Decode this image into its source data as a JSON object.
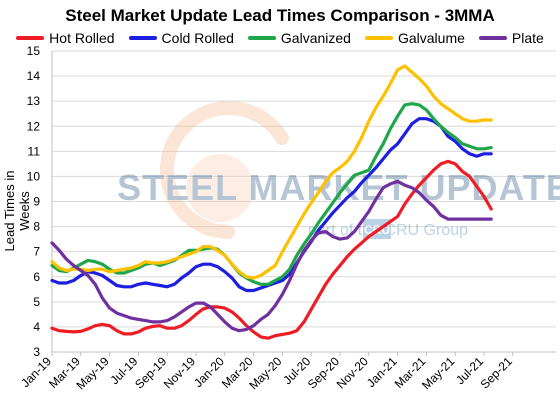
{
  "chart_data": {
    "type": "line",
    "title": "Steel Market Update Lead Times Comparison - 3MMA",
    "xlabel": "",
    "ylabel": "Lead Times in Weeks",
    "ylim": [
      3,
      15
    ],
    "yticks": [
      "3",
      "4",
      "5",
      "6",
      "7",
      "8",
      "9",
      "10",
      "11",
      "12",
      "13",
      "14",
      "15"
    ],
    "grid": "horizontal",
    "legend": "top",
    "x_tick_labels": [
      "Jan-19",
      "Mar-19",
      "May-19",
      "Jul-19",
      "Sep-19",
      "Nov-19",
      "Jan-20",
      "Mar-20",
      "May-20",
      "Jul-20",
      "Sep-20",
      "Nov-20",
      "Jan-21",
      "Mar-21",
      "May-21",
      "Jul-21",
      "Sep-21"
    ],
    "x_months": 36,
    "watermark": {
      "brand": "STEEL MARKET UPDATE",
      "sub": "part of the CRU Group",
      "logo_text": "CRU"
    },
    "series": [
      {
        "name": "Hot Rolled",
        "color": "#ee1c25",
        "points": [
          [
            0,
            3.95
          ],
          [
            0.5,
            3.85
          ],
          [
            1,
            3.82
          ],
          [
            1.5,
            3.8
          ],
          [
            2,
            3.82
          ],
          [
            2.5,
            3.92
          ],
          [
            3,
            4.05
          ],
          [
            3.5,
            4.1
          ],
          [
            4,
            4.05
          ],
          [
            4.5,
            3.85
          ],
          [
            5,
            3.72
          ],
          [
            5.5,
            3.72
          ],
          [
            6,
            3.8
          ],
          [
            6.5,
            3.95
          ],
          [
            7,
            4.02
          ],
          [
            7.5,
            4.05
          ],
          [
            8,
            3.95
          ],
          [
            8.5,
            3.95
          ],
          [
            9,
            4.05
          ],
          [
            9.5,
            4.25
          ],
          [
            10,
            4.5
          ],
          [
            10.5,
            4.72
          ],
          [
            11,
            4.8
          ],
          [
            11.5,
            4.8
          ],
          [
            12,
            4.75
          ],
          [
            12.5,
            4.6
          ],
          [
            13,
            4.35
          ],
          [
            13.5,
            4.05
          ],
          [
            14,
            3.8
          ],
          [
            14.5,
            3.6
          ],
          [
            15,
            3.55
          ],
          [
            15.5,
            3.65
          ],
          [
            16,
            3.7
          ],
          [
            16.5,
            3.75
          ],
          [
            17,
            3.85
          ],
          [
            17.5,
            4.2
          ],
          [
            18,
            4.7
          ],
          [
            18.5,
            5.2
          ],
          [
            19,
            5.7
          ],
          [
            19.5,
            6.1
          ],
          [
            20,
            6.45
          ],
          [
            20.5,
            6.8
          ],
          [
            21,
            7.1
          ],
          [
            21.5,
            7.35
          ],
          [
            22,
            7.6
          ],
          [
            22.5,
            7.8
          ],
          [
            23,
            8.0
          ],
          [
            23.5,
            8.2
          ],
          [
            24,
            8.4
          ],
          [
            24.5,
            8.9
          ],
          [
            25,
            9.3
          ],
          [
            25.5,
            9.65
          ],
          [
            26,
            9.95
          ],
          [
            26.5,
            10.25
          ],
          [
            27,
            10.5
          ],
          [
            27.5,
            10.6
          ],
          [
            28,
            10.5
          ],
          [
            28.5,
            10.2
          ],
          [
            29,
            10.0
          ],
          [
            29.5,
            9.6
          ],
          [
            30,
            9.2
          ],
          [
            30.5,
            8.7
          ]
        ]
      },
      {
        "name": "Cold Rolled",
        "color": "#1d1ee0",
        "points": [
          [
            0,
            5.85
          ],
          [
            0.5,
            5.75
          ],
          [
            1,
            5.75
          ],
          [
            1.5,
            5.85
          ],
          [
            2,
            6.05
          ],
          [
            2.5,
            6.2
          ],
          [
            3,
            6.15
          ],
          [
            3.5,
            6.05
          ],
          [
            4,
            5.85
          ],
          [
            4.5,
            5.65
          ],
          [
            5,
            5.6
          ],
          [
            5.5,
            5.6
          ],
          [
            6,
            5.7
          ],
          [
            6.5,
            5.75
          ],
          [
            7,
            5.7
          ],
          [
            7.5,
            5.65
          ],
          [
            8,
            5.6
          ],
          [
            8.5,
            5.7
          ],
          [
            9,
            5.95
          ],
          [
            9.5,
            6.15
          ],
          [
            10,
            6.4
          ],
          [
            10.5,
            6.5
          ],
          [
            11,
            6.5
          ],
          [
            11.5,
            6.4
          ],
          [
            12,
            6.2
          ],
          [
            12.5,
            5.95
          ],
          [
            13,
            5.6
          ],
          [
            13.5,
            5.45
          ],
          [
            14,
            5.45
          ],
          [
            14.5,
            5.55
          ],
          [
            15,
            5.65
          ],
          [
            15.5,
            5.75
          ],
          [
            16,
            5.85
          ],
          [
            16.5,
            6.1
          ],
          [
            17,
            6.55
          ],
          [
            17.5,
            7.0
          ],
          [
            18,
            7.4
          ],
          [
            18.5,
            7.85
          ],
          [
            19,
            8.2
          ],
          [
            19.5,
            8.55
          ],
          [
            20,
            8.85
          ],
          [
            20.5,
            9.15
          ],
          [
            21,
            9.4
          ],
          [
            21.5,
            9.75
          ],
          [
            22,
            10.05
          ],
          [
            22.5,
            10.35
          ],
          [
            23,
            10.7
          ],
          [
            23.5,
            11.05
          ],
          [
            24,
            11.3
          ],
          [
            24.5,
            11.7
          ],
          [
            25,
            12.1
          ],
          [
            25.5,
            12.3
          ],
          [
            26,
            12.3
          ],
          [
            26.5,
            12.2
          ],
          [
            27,
            12.0
          ],
          [
            27.5,
            11.6
          ],
          [
            28,
            11.4
          ],
          [
            28.5,
            11.1
          ],
          [
            29,
            10.9
          ],
          [
            29.5,
            10.8
          ],
          [
            30,
            10.9
          ],
          [
            30.5,
            10.9
          ]
        ]
      },
      {
        "name": "Galvanized",
        "color": "#1fa64a",
        "points": [
          [
            0,
            6.45
          ],
          [
            0.5,
            6.25
          ],
          [
            1,
            6.2
          ],
          [
            1.5,
            6.35
          ],
          [
            2,
            6.5
          ],
          [
            2.5,
            6.65
          ],
          [
            3,
            6.6
          ],
          [
            3.5,
            6.5
          ],
          [
            4,
            6.3
          ],
          [
            4.5,
            6.15
          ],
          [
            5,
            6.15
          ],
          [
            5.5,
            6.25
          ],
          [
            6,
            6.35
          ],
          [
            6.5,
            6.5
          ],
          [
            7,
            6.55
          ],
          [
            7.5,
            6.45
          ],
          [
            8,
            6.55
          ],
          [
            8.5,
            6.65
          ],
          [
            9,
            6.85
          ],
          [
            9.5,
            7.05
          ],
          [
            10,
            7.05
          ],
          [
            10.5,
            7.1
          ],
          [
            11,
            7.15
          ],
          [
            11.5,
            7.1
          ],
          [
            12,
            6.85
          ],
          [
            12.5,
            6.5
          ],
          [
            13,
            6.15
          ],
          [
            13.5,
            5.95
          ],
          [
            14,
            5.8
          ],
          [
            14.5,
            5.7
          ],
          [
            15,
            5.7
          ],
          [
            15.5,
            5.85
          ],
          [
            16,
            6.0
          ],
          [
            16.5,
            6.3
          ],
          [
            17,
            6.85
          ],
          [
            17.5,
            7.3
          ],
          [
            18,
            7.7
          ],
          [
            18.5,
            8.15
          ],
          [
            19,
            8.55
          ],
          [
            19.5,
            8.95
          ],
          [
            20,
            9.35
          ],
          [
            20.5,
            9.7
          ],
          [
            21,
            10.05
          ],
          [
            21.5,
            10.15
          ],
          [
            22,
            10.25
          ],
          [
            22.5,
            10.8
          ],
          [
            23,
            11.3
          ],
          [
            23.5,
            11.9
          ],
          [
            24,
            12.4
          ],
          [
            24.5,
            12.85
          ],
          [
            25,
            12.9
          ],
          [
            25.5,
            12.85
          ],
          [
            26,
            12.65
          ],
          [
            26.5,
            12.3
          ],
          [
            27,
            12.0
          ],
          [
            27.5,
            11.75
          ],
          [
            28,
            11.55
          ],
          [
            28.5,
            11.3
          ],
          [
            29,
            11.2
          ],
          [
            29.5,
            11.1
          ],
          [
            30,
            11.1
          ],
          [
            30.5,
            11.15
          ]
        ]
      },
      {
        "name": "Galvalume",
        "color": "#ffc000",
        "points": [
          [
            0,
            6.6
          ],
          [
            0.5,
            6.35
          ],
          [
            1,
            6.25
          ],
          [
            1.5,
            6.3
          ],
          [
            2,
            6.3
          ],
          [
            2.5,
            6.25
          ],
          [
            3,
            6.3
          ],
          [
            3.5,
            6.3
          ],
          [
            4,
            6.2
          ],
          [
            4.5,
            6.25
          ],
          [
            5,
            6.3
          ],
          [
            5.5,
            6.35
          ],
          [
            6,
            6.45
          ],
          [
            6.5,
            6.6
          ],
          [
            7,
            6.55
          ],
          [
            7.5,
            6.55
          ],
          [
            8,
            6.6
          ],
          [
            8.5,
            6.7
          ],
          [
            9,
            6.8
          ],
          [
            9.5,
            6.9
          ],
          [
            10,
            7.0
          ],
          [
            10.5,
            7.2
          ],
          [
            11,
            7.2
          ],
          [
            11.5,
            7.05
          ],
          [
            12,
            6.85
          ],
          [
            12.5,
            6.5
          ],
          [
            13,
            6.2
          ],
          [
            13.5,
            6.0
          ],
          [
            14,
            5.95
          ],
          [
            14.5,
            6.05
          ],
          [
            15,
            6.25
          ],
          [
            15.5,
            6.45
          ],
          [
            16,
            7.0
          ],
          [
            16.5,
            7.5
          ],
          [
            17,
            8.0
          ],
          [
            17.5,
            8.5
          ],
          [
            18,
            8.95
          ],
          [
            18.5,
            9.35
          ],
          [
            19,
            9.8
          ],
          [
            19.5,
            10.15
          ],
          [
            20,
            10.35
          ],
          [
            20.5,
            10.6
          ],
          [
            21,
            11.0
          ],
          [
            21.5,
            11.55
          ],
          [
            22,
            12.2
          ],
          [
            22.5,
            12.75
          ],
          [
            23,
            13.2
          ],
          [
            23.5,
            13.7
          ],
          [
            24,
            14.25
          ],
          [
            24.5,
            14.4
          ],
          [
            25,
            14.15
          ],
          [
            25.5,
            13.9
          ],
          [
            26,
            13.6
          ],
          [
            26.5,
            13.2
          ],
          [
            27,
            12.9
          ],
          [
            27.5,
            12.7
          ],
          [
            28,
            12.5
          ],
          [
            28.5,
            12.3
          ],
          [
            29,
            12.2
          ],
          [
            29.5,
            12.2
          ],
          [
            30,
            12.25
          ],
          [
            30.5,
            12.25
          ]
        ]
      },
      {
        "name": "Plate",
        "color": "#7030a0",
        "points": [
          [
            0,
            7.35
          ],
          [
            0.5,
            7.05
          ],
          [
            1,
            6.7
          ],
          [
            1.5,
            6.45
          ],
          [
            2,
            6.25
          ],
          [
            2.5,
            6.05
          ],
          [
            3,
            5.7
          ],
          [
            3.5,
            5.15
          ],
          [
            4,
            4.75
          ],
          [
            4.5,
            4.55
          ],
          [
            5,
            4.45
          ],
          [
            5.5,
            4.35
          ],
          [
            6,
            4.3
          ],
          [
            6.5,
            4.25
          ],
          [
            7,
            4.2
          ],
          [
            7.5,
            4.2
          ],
          [
            8,
            4.25
          ],
          [
            8.5,
            4.4
          ],
          [
            9,
            4.6
          ],
          [
            9.5,
            4.8
          ],
          [
            10,
            4.95
          ],
          [
            10.5,
            4.95
          ],
          [
            11,
            4.8
          ],
          [
            11.5,
            4.5
          ],
          [
            12,
            4.2
          ],
          [
            12.5,
            3.95
          ],
          [
            13,
            3.85
          ],
          [
            13.5,
            3.9
          ],
          [
            14,
            4.05
          ],
          [
            14.5,
            4.3
          ],
          [
            15,
            4.5
          ],
          [
            15.5,
            4.85
          ],
          [
            16,
            5.3
          ],
          [
            16.5,
            5.85
          ],
          [
            17,
            6.5
          ],
          [
            17.5,
            7.05
          ],
          [
            18,
            7.45
          ],
          [
            18.5,
            7.75
          ],
          [
            19,
            7.8
          ],
          [
            19.5,
            7.6
          ],
          [
            20,
            7.5
          ],
          [
            20.5,
            7.55
          ],
          [
            21,
            7.8
          ],
          [
            21.5,
            8.2
          ],
          [
            22,
            8.6
          ],
          [
            22.5,
            9.1
          ],
          [
            23,
            9.55
          ],
          [
            23.5,
            9.7
          ],
          [
            24,
            9.8
          ],
          [
            24.5,
            9.65
          ],
          [
            25,
            9.55
          ],
          [
            25.5,
            9.35
          ],
          [
            26,
            9.05
          ],
          [
            26.5,
            8.8
          ],
          [
            27,
            8.45
          ],
          [
            27.5,
            8.3
          ],
          [
            28,
            8.3
          ],
          [
            28.5,
            8.3
          ],
          [
            29,
            8.3
          ],
          [
            29.5,
            8.3
          ],
          [
            30,
            8.3
          ],
          [
            30.5,
            8.3
          ]
        ]
      }
    ]
  }
}
